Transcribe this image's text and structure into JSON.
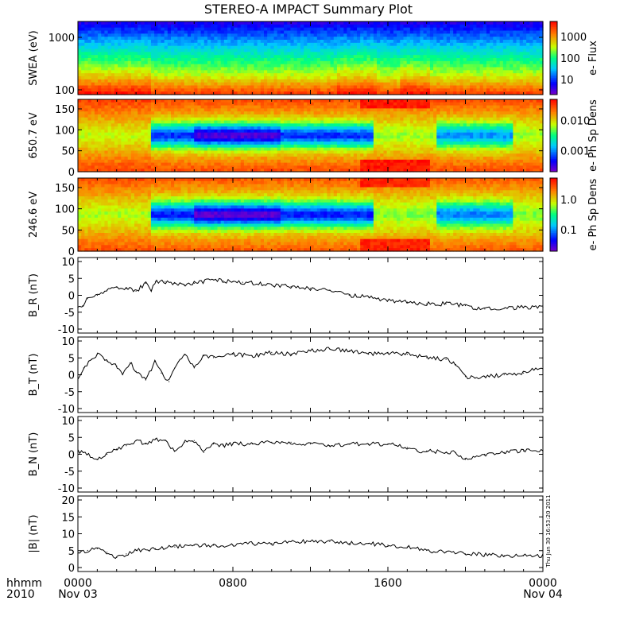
{
  "title": "STEREO-A IMPACT Summary Plot",
  "stamp": "Thu Jun 30 16:53:20 2011",
  "footer": {
    "left_top": "hhmm",
    "left_bottom": "2010",
    "x_ticks": [
      "0000",
      "0800",
      "1600",
      "0000"
    ],
    "x_dates": [
      "Nov 03",
      "",
      "",
      "Nov 04"
    ]
  },
  "chart_data": [
    {
      "type": "heatmap",
      "ylabel": "SWEA (eV)",
      "yscale": "log",
      "ylim": [
        95,
        2200
      ],
      "yticks": [
        "1000",
        "100"
      ],
      "colorbar_label": "e- Flux",
      "colorbar_scale": "log",
      "colorbar_ticks": [
        "1000",
        "100",
        "10"
      ],
      "colors": [
        "#7800c8",
        "#0000ff",
        "#00c8ff",
        "#00ff80",
        "#c8ff00",
        "#ff8000",
        "#ff0000"
      ]
    },
    {
      "type": "heatmap",
      "ylabel": "650.7 eV",
      "ylim": [
        0,
        180
      ],
      "yticks": [
        "150",
        "100",
        "50",
        "0"
      ],
      "colorbar_label": "e- Ph Sp Dens",
      "colorbar_scale": "log",
      "colorbar_ticks": [
        "0.010",
        "0.001"
      ]
    },
    {
      "type": "heatmap",
      "ylabel": "246.6 eV",
      "ylim": [
        0,
        180
      ],
      "yticks": [
        "150",
        "100",
        "50",
        "0"
      ],
      "colorbar_label": "e- Ph Sp Dens",
      "colorbar_scale": "log",
      "colorbar_ticks": [
        "1.0",
        "0.1"
      ]
    },
    {
      "type": "line",
      "ylabel": "B_R (nT)",
      "ylim": [
        -11,
        11
      ],
      "yticks": [
        "10",
        "5",
        "0",
        "-5",
        "-10"
      ],
      "x_hours": [
        0,
        0.25,
        0.5,
        1,
        1.5,
        2,
        2.5,
        3,
        3.5,
        3.8,
        4,
        4.5,
        5,
        5.5,
        6,
        6.5,
        7,
        7.5,
        8,
        8.5,
        9,
        10,
        11,
        12,
        13,
        14,
        15,
        16,
        17,
        18,
        19,
        20,
        20.5,
        21,
        22,
        23,
        24
      ],
      "values": [
        -3.5,
        -3,
        -1,
        0,
        1.5,
        2.5,
        2,
        1.2,
        3.5,
        1.5,
        4,
        4,
        3.5,
        3,
        3.5,
        4,
        4.5,
        4.2,
        4,
        3.8,
        3.5,
        3,
        2.5,
        2,
        1.5,
        0,
        -0.5,
        -1.5,
        -2,
        -2.5,
        -2.5,
        -3,
        -4,
        -4,
        -3.8,
        -3.5,
        -3.5
      ]
    },
    {
      "type": "line",
      "ylabel": "B_T (nT)",
      "ylim": [
        -11,
        11
      ],
      "yticks": [
        "10",
        "5",
        "0",
        "-5",
        "-10"
      ],
      "x_hours": [
        0,
        0.3,
        0.7,
        1,
        1.5,
        2,
        2.3,
        2.7,
        3,
        3.5,
        4,
        4.3,
        4.7,
        5,
        5.5,
        6,
        6.5,
        7,
        8,
        9,
        10,
        11,
        12,
        13,
        14,
        15,
        16,
        17,
        18,
        19,
        19.5,
        20,
        20.5,
        21,
        22,
        23,
        23.5,
        24
      ],
      "values": [
        -1.5,
        2,
        4.5,
        6,
        4,
        2.5,
        0,
        3.5,
        1,
        -1.5,
        4,
        0.5,
        -2,
        2,
        6,
        2,
        5.5,
        5,
        6,
        5.5,
        6.5,
        6,
        7,
        7.5,
        7,
        6,
        6.5,
        6,
        5,
        4.5,
        3,
        -0.5,
        -1,
        -0.5,
        0,
        0.5,
        1.5,
        1.5
      ]
    },
    {
      "type": "line",
      "ylabel": "B_N (nT)",
      "ylim": [
        -11,
        11
      ],
      "yticks": [
        "10",
        "5",
        "0",
        "-5",
        "-10"
      ],
      "x_hours": [
        0,
        0.5,
        1,
        1.5,
        2,
        2.5,
        3,
        3.5,
        4,
        4.5,
        5,
        5.5,
        6,
        6.5,
        7,
        7.5,
        8,
        9,
        10,
        11,
        12,
        13,
        14,
        15,
        16,
        17,
        17.5,
        18,
        19,
        19.5,
        20,
        21,
        22,
        23,
        24
      ],
      "values": [
        1,
        0,
        -1.5,
        0,
        1.5,
        2.5,
        4,
        3,
        4.5,
        4,
        1,
        3.5,
        4,
        0.5,
        3,
        2.5,
        3,
        3,
        3.5,
        3.5,
        3,
        2.5,
        3,
        3,
        3,
        2,
        1,
        1,
        0.5,
        0.5,
        -1.5,
        0,
        0.5,
        1,
        1
      ]
    },
    {
      "type": "line",
      "ylabel": "|B| (nT)",
      "ylim": [
        -1,
        20.5
      ],
      "yticks": [
        "20",
        "15",
        "10",
        "5",
        "0"
      ],
      "x_hours": [
        0,
        0.5,
        1,
        1.5,
        2,
        2.5,
        3,
        4,
        5,
        6,
        7,
        8,
        9,
        10,
        11,
        12,
        13,
        14,
        15,
        16,
        17,
        18,
        19,
        20,
        21,
        22,
        23,
        24
      ],
      "values": [
        4,
        5,
        5.5,
        4.5,
        3,
        4,
        5,
        5.5,
        6,
        6.5,
        6.5,
        6.5,
        7,
        7,
        7.5,
        7.5,
        7.5,
        7,
        7,
        6.5,
        6,
        5,
        4.5,
        4,
        3.8,
        3.5,
        3.5,
        3.5
      ]
    }
  ]
}
